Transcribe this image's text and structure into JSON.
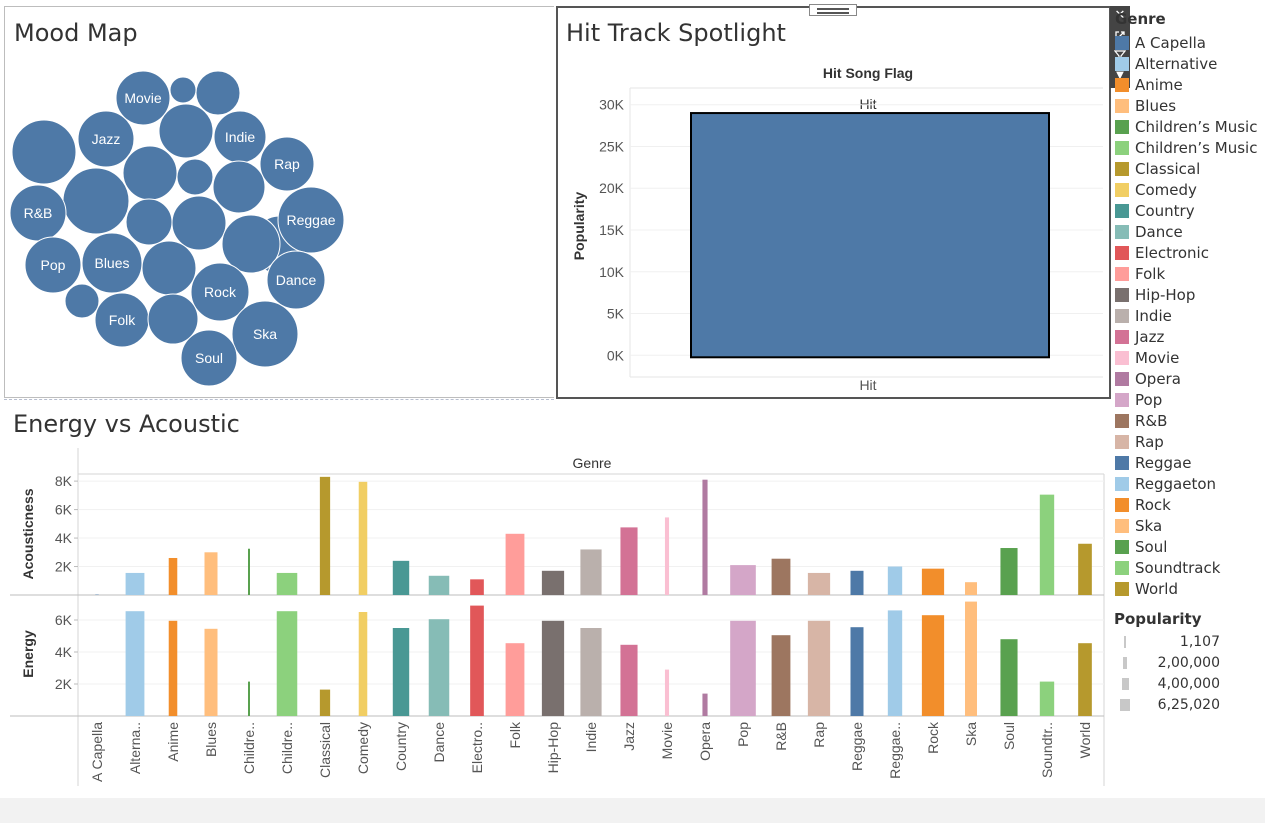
{
  "mood_map": {
    "title": "Mood Map",
    "bubble_color": "#4e79a7",
    "labels": [
      "Movie",
      "Jazz",
      "Indie",
      "Rap",
      "R&B",
      "Reggae",
      "Pop",
      "Blues",
      "Rock",
      "Dance",
      "Folk",
      "Ska",
      "Soul"
    ]
  },
  "hit_spotlight": {
    "title": "Hit Track Spotlight",
    "column_header": "Hit Song Flag",
    "chart_data": {
      "type": "bar",
      "title": "Hit Song Flag",
      "categories": [
        "Hit"
      ],
      "values": [
        29000
      ],
      "ylabel": "Popularity",
      "xlabel": "",
      "ylim": [
        0,
        32000
      ],
      "yticks": [
        "0K",
        "5K",
        "10K",
        "15K",
        "20K",
        "25K",
        "30K"
      ],
      "ytick_values": [
        0,
        5000,
        10000,
        15000,
        20000,
        25000,
        30000
      ],
      "bar_label_top": "Hit",
      "bar_color": "#4e79a7"
    }
  },
  "energy_acoustic": {
    "title": "Energy vs Acoustic",
    "column_header": "Genre",
    "chart_data": {
      "type": "bar",
      "categories": [
        "A Capella",
        "Alterna..",
        "Anime",
        "Blues",
        "Childre..",
        "Childre..",
        "Classical",
        "Comedy",
        "Country",
        "Dance",
        "Electro..",
        "Folk",
        "Hip-Hop",
        "Indie",
        "Jazz",
        "Movie",
        "Opera",
        "Pop",
        "R&B",
        "Rap",
        "Reggae",
        "Reggae..",
        "Rock",
        "Ska",
        "Soul",
        "Soundtr..",
        "World"
      ],
      "colors": [
        "#4e79a7",
        "#a0cbe8",
        "#f28e2b",
        "#ffbe7d",
        "#59a14f",
        "#8cd17d",
        "#b6992d",
        "#f1ce63",
        "#499894",
        "#86bcb6",
        "#e15759",
        "#ff9d9a",
        "#79706e",
        "#bab0ac",
        "#d37295",
        "#fabfd2",
        "#b07aa1",
        "#d4a6c8",
        "#9d7660",
        "#d7b5a6",
        "#4e79a7",
        "#a0cbe8",
        "#f28e2b",
        "#ffbe7d",
        "#59a14f",
        "#8cd17d",
        "#b6992d"
      ],
      "widths": [
        0.1,
        0.55,
        0.25,
        0.38,
        0.05,
        0.6,
        0.3,
        0.25,
        0.48,
        0.6,
        0.4,
        0.55,
        0.65,
        0.62,
        0.5,
        0.12,
        0.15,
        0.75,
        0.55,
        0.65,
        0.38,
        0.42,
        0.65,
        0.35,
        0.5,
        0.42,
        0.4
      ],
      "series": [
        {
          "name": "Acousticness",
          "values": [
            30,
            1550,
            2600,
            3000,
            3250,
            1550,
            8300,
            7950,
            2400,
            1350,
            1100,
            4300,
            1700,
            3200,
            4750,
            5450,
            8100,
            2100,
            2550,
            1550,
            1700,
            2000,
            1850,
            900,
            3300,
            7050,
            3600
          ],
          "ylim": [
            0,
            8500
          ],
          "yticks": [
            "2K",
            "4K",
            "6K",
            "8K"
          ],
          "ytick_values": [
            2000,
            4000,
            6000,
            8000
          ]
        },
        {
          "name": "Energy",
          "values": [
            0,
            6550,
            5950,
            5450,
            2150,
            6550,
            1650,
            6500,
            5500,
            6050,
            6900,
            4550,
            5950,
            5500,
            4450,
            2900,
            1400,
            5950,
            5050,
            5950,
            5550,
            6600,
            6300,
            7150,
            4800,
            2150,
            4550
          ],
          "ylim": [
            0,
            7500
          ],
          "yticks": [
            "2K",
            "4K",
            "6K"
          ],
          "ytick_values": [
            2000,
            4000,
            6000
          ]
        }
      ]
    }
  },
  "genre_legend": {
    "title": "Genre",
    "items": [
      {
        "label": "A Capella",
        "color": "#4e79a7"
      },
      {
        "label": "Alternative",
        "color": "#a0cbe8"
      },
      {
        "label": "Anime",
        "color": "#f28e2b"
      },
      {
        "label": "Blues",
        "color": "#ffbe7d"
      },
      {
        "label": "Children’s Music",
        "color": "#59a14f"
      },
      {
        "label": "Children’s Music",
        "color": "#8cd17d"
      },
      {
        "label": "Classical",
        "color": "#b6992d"
      },
      {
        "label": "Comedy",
        "color": "#f1ce63"
      },
      {
        "label": "Country",
        "color": "#499894"
      },
      {
        "label": "Dance",
        "color": "#86bcb6"
      },
      {
        "label": "Electronic",
        "color": "#e15759"
      },
      {
        "label": "Folk",
        "color": "#ff9d9a"
      },
      {
        "label": "Hip-Hop",
        "color": "#79706e"
      },
      {
        "label": "Indie",
        "color": "#bab0ac"
      },
      {
        "label": "Jazz",
        "color": "#d37295"
      },
      {
        "label": "Movie",
        "color": "#fabfd2"
      },
      {
        "label": "Opera",
        "color": "#b07aa1"
      },
      {
        "label": "Pop",
        "color": "#d4a6c8"
      },
      {
        "label": "R&B",
        "color": "#9d7660"
      },
      {
        "label": "Rap",
        "color": "#d7b5a6"
      },
      {
        "label": "Reggae",
        "color": "#4e79a7"
      },
      {
        "label": "Reggaeton",
        "color": "#a0cbe8"
      },
      {
        "label": "Rock",
        "color": "#f28e2b"
      },
      {
        "label": "Ska",
        "color": "#ffbe7d"
      },
      {
        "label": "Soul",
        "color": "#59a14f"
      },
      {
        "label": "Soundtrack",
        "color": "#8cd17d"
      },
      {
        "label": "World",
        "color": "#b6992d"
      }
    ]
  },
  "popularity_legend": {
    "title": "Popularity",
    "items": [
      "1,107",
      "2,00,000",
      "4,00,000",
      "6,25,020"
    ]
  },
  "toolbar": {
    "icons": [
      "close-icon",
      "popout-icon",
      "filter-icon",
      "menu-arrow-icon"
    ]
  }
}
